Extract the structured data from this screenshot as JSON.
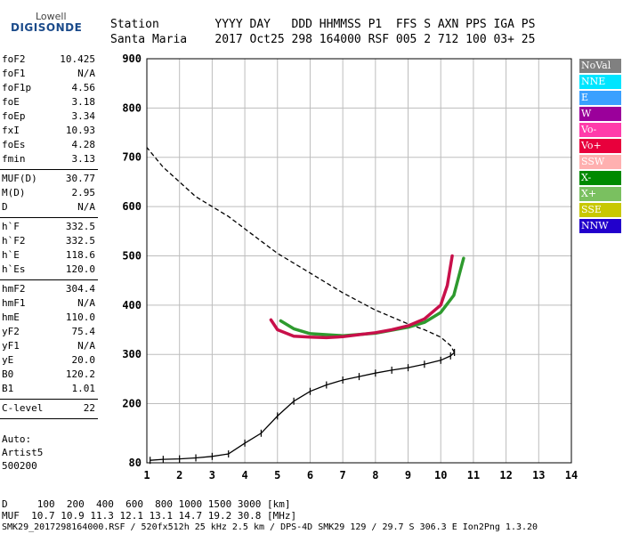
{
  "logo": {
    "top": "Lowell",
    "bottom": "DIGISONDE"
  },
  "header": {
    "row1": "Station        YYYY DAY   DDD HHMMSS P1  FFS S AXN PPS IGA PS",
    "row2": "Santa Maria    2017 Oct25 298 164000 RSF 005 2 712 100 03+ 25"
  },
  "params": [
    {
      "k": "foF2",
      "v": "10.425"
    },
    {
      "k": "foF1",
      "v": "N/A"
    },
    {
      "k": "foF1p",
      "v": "4.56"
    },
    {
      "k": "foE",
      "v": "3.18"
    },
    {
      "k": "foEp",
      "v": "3.34"
    },
    {
      "k": "fxI",
      "v": "10.93"
    },
    {
      "k": "foEs",
      "v": "4.28"
    },
    {
      "k": "fmin",
      "v": "3.13"
    },
    {
      "k": "MUF(D)",
      "v": "30.77"
    },
    {
      "k": "M(D)",
      "v": "2.95"
    },
    {
      "k": "D",
      "v": "N/A"
    },
    {
      "k": "h`F",
      "v": "332.5"
    },
    {
      "k": "h`F2",
      "v": "332.5"
    },
    {
      "k": "h`E",
      "v": "118.6"
    },
    {
      "k": "h`Es",
      "v": "120.0"
    },
    {
      "k": "hmF2",
      "v": "304.4"
    },
    {
      "k": "hmF1",
      "v": "N/A"
    },
    {
      "k": "hmE",
      "v": "110.0"
    },
    {
      "k": "yF2",
      "v": "75.4"
    },
    {
      "k": "yF1",
      "v": "N/A"
    },
    {
      "k": "yE",
      "v": "20.0"
    },
    {
      "k": "B0",
      "v": "120.2"
    },
    {
      "k": "B1",
      "v": "1.01"
    },
    {
      "k": "C-level",
      "v": "22"
    }
  ],
  "auto": {
    "line1": "Auto:",
    "line2": "Artist5",
    "line3": "500200"
  },
  "legend": [
    {
      "label": "NoVal",
      "color": "#808080"
    },
    {
      "label": "NNE",
      "color": "#00e5ff"
    },
    {
      "label": "E",
      "color": "#3aa0ff"
    },
    {
      "label": "W",
      "color": "#9b009b"
    },
    {
      "label": "Vo-",
      "color": "#ff3caa"
    },
    {
      "label": "Vo+",
      "color": "#e8003c"
    },
    {
      "label": "SSW",
      "color": "#ffb0b0"
    },
    {
      "label": "X-",
      "color": "#008a00"
    },
    {
      "label": "X+",
      "color": "#7ac060"
    },
    {
      "label": "SSE",
      "color": "#c8c800"
    },
    {
      "label": "NNW",
      "color": "#2200cc"
    }
  ],
  "footer": {
    "line1": "D     100  200  400  600  800 1000 1500 3000 [km]",
    "line2": "MUF  10.7 10.9 11.3 12.1 13.1 14.7 19.2 30.8 [MHz]",
    "line3": "SMK29_2017298164000.RSF / 520fx512h 25 kHz 2.5 km / DPS-4D SMK29 129 / 29.7 S 306.3 E Ion2Png 1.3.20"
  },
  "chart_data": {
    "type": "scatter",
    "xlim": [
      1,
      14
    ],
    "ylim": [
      80,
      900
    ],
    "x_ticks": [
      "1",
      "2",
      "3",
      "4",
      "5",
      "6",
      "7",
      "8",
      "9",
      "10",
      "11",
      "12",
      "13",
      "14"
    ],
    "y_ticks": [
      "80",
      "200",
      "300",
      "400",
      "500",
      "600",
      "700",
      "800",
      "900"
    ],
    "grid": true,
    "profile_curve": [
      [
        10.42,
        304
      ],
      [
        10.3,
        318
      ],
      [
        10.0,
        335
      ],
      [
        9.5,
        350
      ],
      [
        9.0,
        362
      ],
      [
        8.0,
        390
      ],
      [
        7.0,
        425
      ],
      [
        6.0,
        465
      ],
      [
        5.0,
        505
      ],
      [
        4.5,
        530
      ],
      [
        3.5,
        580
      ],
      [
        2.5,
        620
      ],
      [
        1.5,
        680
      ],
      [
        1.0,
        720
      ]
    ],
    "trace_curve": [
      [
        1.1,
        85
      ],
      [
        1.5,
        87
      ],
      [
        2.0,
        88
      ],
      [
        2.5,
        90
      ],
      [
        3.0,
        93
      ],
      [
        3.5,
        98
      ],
      [
        4.0,
        120
      ],
      [
        4.5,
        140
      ],
      [
        5.0,
        175
      ],
      [
        5.5,
        205
      ],
      [
        6.0,
        225
      ],
      [
        6.5,
        238
      ],
      [
        7.0,
        248
      ],
      [
        7.5,
        255
      ],
      [
        8.0,
        262
      ],
      [
        8.5,
        268
      ],
      [
        9.0,
        273
      ],
      [
        9.5,
        280
      ],
      [
        10.0,
        288
      ],
      [
        10.3,
        297
      ],
      [
        10.42,
        304
      ]
    ],
    "o_trace": [
      [
        4.8,
        370
      ],
      [
        5.0,
        350
      ],
      [
        5.5,
        337
      ],
      [
        6.0,
        335
      ],
      [
        6.5,
        334
      ],
      [
        7.0,
        336
      ],
      [
        7.5,
        340
      ],
      [
        8.0,
        344
      ],
      [
        8.5,
        350
      ],
      [
        9.0,
        358
      ],
      [
        9.5,
        372
      ],
      [
        10.0,
        400
      ],
      [
        10.2,
        440
      ],
      [
        10.35,
        500
      ]
    ],
    "x_trace": [
      [
        5.1,
        368
      ],
      [
        5.5,
        352
      ],
      [
        6.0,
        342
      ],
      [
        7.0,
        338
      ],
      [
        8.0,
        343
      ],
      [
        9.0,
        355
      ],
      [
        9.5,
        365
      ],
      [
        10.0,
        385
      ],
      [
        10.4,
        420
      ],
      [
        10.6,
        470
      ],
      [
        10.7,
        495
      ]
    ]
  }
}
